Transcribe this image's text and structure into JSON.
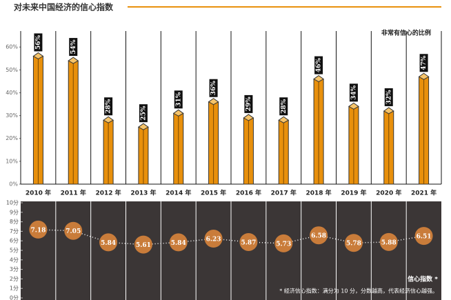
{
  "chart_data": [
    {
      "type": "bar",
      "title": "对未来中国经济的信心指数",
      "legend": "非常有信心的比例",
      "categories": [
        "2010 年",
        "2011 年",
        "2012 年",
        "2013 年",
        "2014 年",
        "2015 年",
        "2016 年",
        "2017 年",
        "2018 年",
        "2019 年",
        "2020 年",
        "2021 年"
      ],
      "values": [
        56,
        54,
        28,
        25,
        31,
        36,
        29,
        28,
        46,
        34,
        32,
        47
      ],
      "value_labels": [
        "56%",
        "54%",
        "28%",
        "25%",
        "31%",
        "36%",
        "29%",
        "28%",
        "46%",
        "34%",
        "32%",
        "47%"
      ],
      "color": "#e8900c",
      "ylim": [
        0,
        67
      ],
      "yticks": [
        {
          "value": 0,
          "label": "0%"
        },
        {
          "value": 10,
          "label": "10%"
        },
        {
          "value": 20,
          "label": "20%"
        },
        {
          "value": 30,
          "label": "30%"
        },
        {
          "value": 40,
          "label": "40%"
        },
        {
          "value": 50,
          "label": "50%"
        },
        {
          "value": 60,
          "label": "60%"
        }
      ]
    },
    {
      "type": "line",
      "legend": "信心指数 *",
      "note": "* 经济信心指数：满分为 10 分，分数越高，代表经济信心越强。",
      "values": [
        7.18,
        7.05,
        5.84,
        5.61,
        5.84,
        6.23,
        5.87,
        5.73,
        6.58,
        5.78,
        5.88,
        6.51
      ],
      "color": "#c97c3a",
      "ylim": [
        0,
        10
      ],
      "yticks": [
        {
          "value": 0,
          "label": "0分"
        },
        {
          "value": 1,
          "label": "1分"
        },
        {
          "value": 2,
          "label": "2分"
        },
        {
          "value": 3,
          "label": "3分"
        },
        {
          "value": 4,
          "label": "4分"
        },
        {
          "value": 5,
          "label": "5分"
        },
        {
          "value": 6,
          "label": "6分"
        },
        {
          "value": 7,
          "label": "7分"
        },
        {
          "value": 8,
          "label": "8分"
        },
        {
          "value": 9,
          "label": "9分"
        },
        {
          "value": 10,
          "label": "10分"
        }
      ]
    }
  ]
}
